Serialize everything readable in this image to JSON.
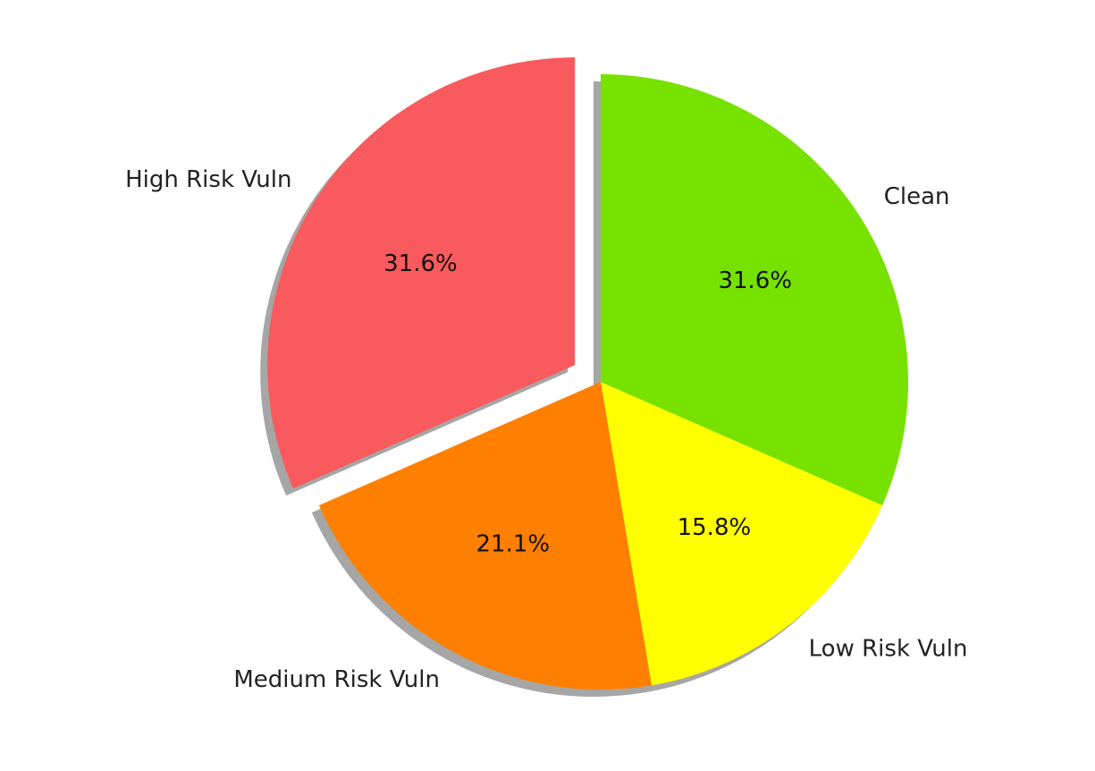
{
  "chart_data": {
    "type": "pie",
    "title": "",
    "start_angle_deg": 90,
    "counterclock": false,
    "shadow": true,
    "slices": [
      {
        "label": "Clean",
        "value": 31.6,
        "pct_label": "31.6%",
        "color": "#77e200",
        "explode": 0.0
      },
      {
        "label": "Low Risk Vuln",
        "value": 15.8,
        "pct_label": "15.8%",
        "color": "#ffff00",
        "explode": 0.0
      },
      {
        "label": "Medium Risk Vuln",
        "value": 21.1,
        "pct_label": "21.1%",
        "color": "#ff7f00",
        "explode": 0.0
      },
      {
        "label": "High Risk Vuln",
        "value": 31.6,
        "pct_label": "31.6%",
        "color": "#f95a5d",
        "explode": 0.1
      }
    ]
  }
}
